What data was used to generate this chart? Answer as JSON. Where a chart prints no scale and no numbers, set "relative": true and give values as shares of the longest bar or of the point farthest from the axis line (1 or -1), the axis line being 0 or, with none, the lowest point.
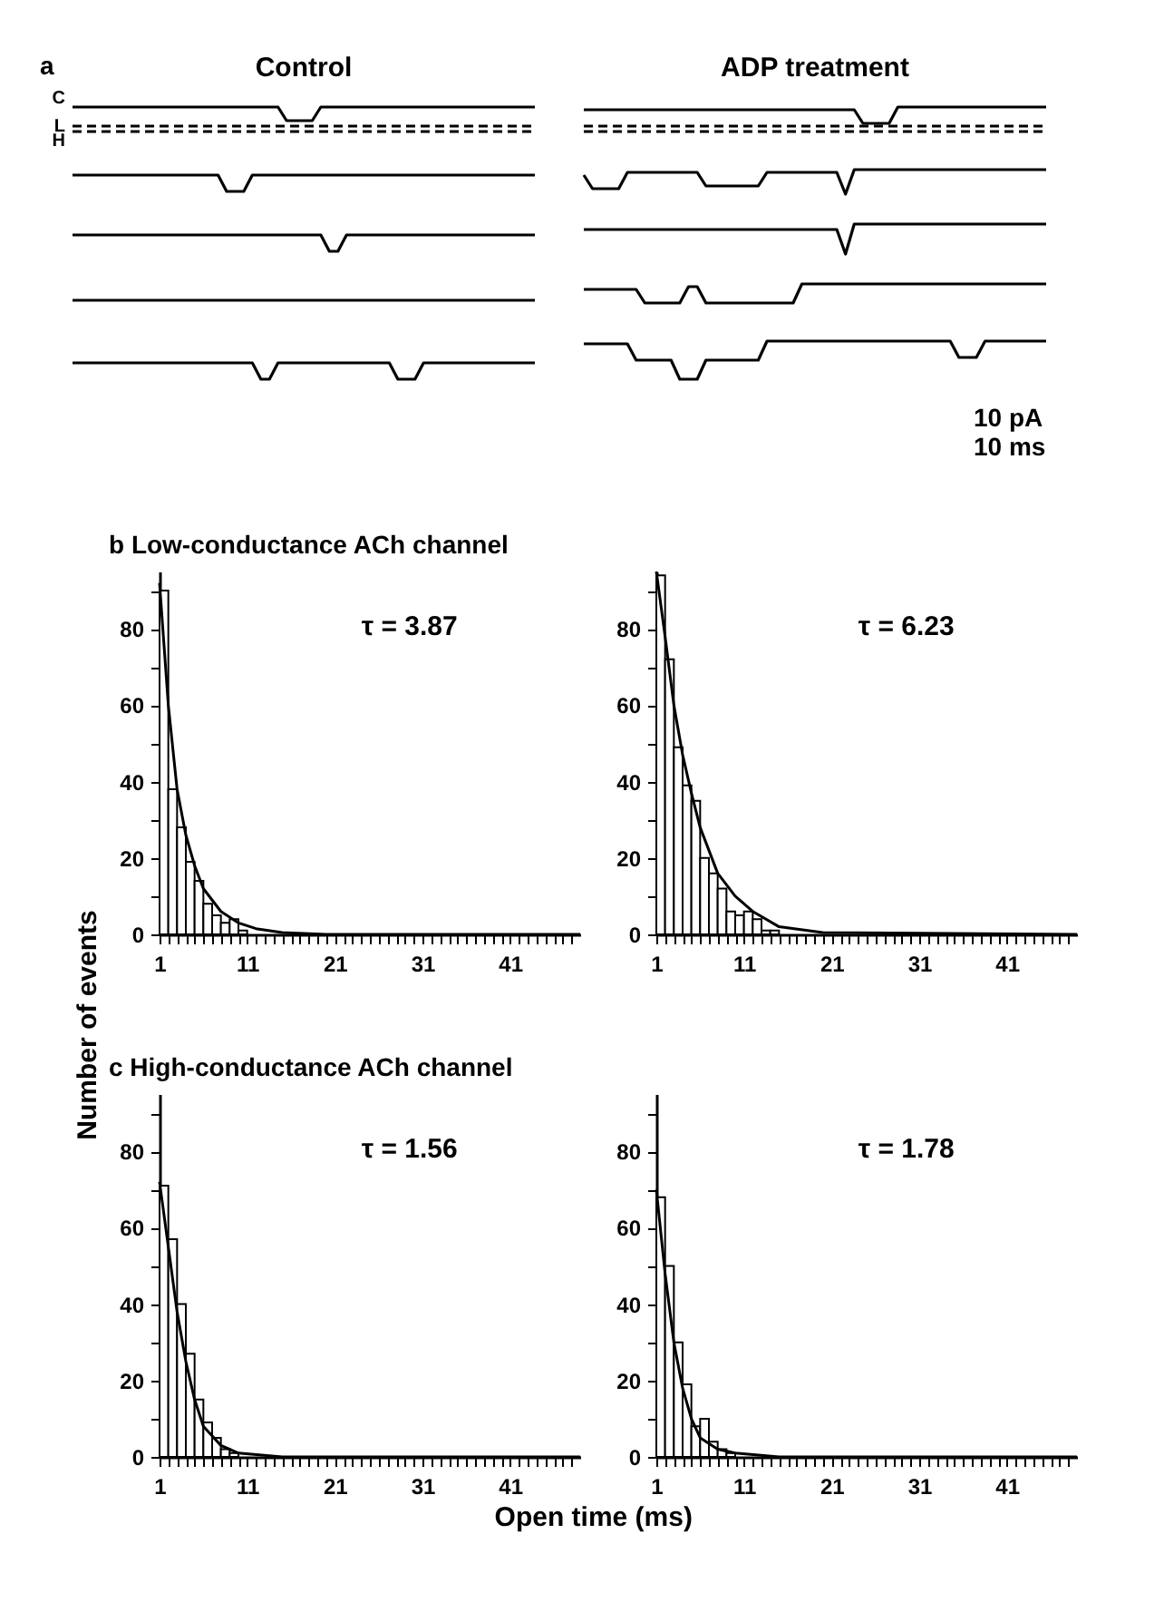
{
  "chart_data": [
    {
      "type": "line",
      "title": "Control",
      "relative": true,
      "annotations": [
        "a"
      ],
      "marker": "none",
      "categories": [
        null,
        null,
        null,
        null,
        null,
        null,
        null,
        null,
        null,
        null,
        null,
        null,
        null,
        null,
        null,
        null,
        null,
        null,
        null,
        null,
        null,
        null,
        null,
        null,
        null,
        null,
        null,
        null,
        null,
        null,
        null,
        null,
        null,
        null,
        null,
        null,
        null,
        null,
        null,
        null,
        null,
        null,
        null,
        null,
        null,
        null,
        null,
        null,
        null,
        null,
        null,
        null,
        null,
        null,
        null
      ],
      "series": [
        {
          "name": "C",
          "color": "#000000",
          "line_style": "solid",
          "values": [
            1,
            1,
            1,
            1,
            1,
            1,
            1,
            1,
            1,
            1,
            1,
            1,
            1,
            1,
            1,
            1,
            1,
            1,
            1,
            1,
            1,
            1,
            1,
            1,
            1,
            0.95,
            0.95,
            0.95,
            0.95,
            1,
            1,
            1,
            1,
            1,
            1,
            1,
            1,
            1,
            1,
            1,
            1,
            1,
            1,
            1,
            1,
            1,
            1,
            1,
            1,
            1,
            1,
            1,
            1,
            1,
            1
          ]
        },
        {
          "name": "L",
          "color": "#000000",
          "line_style": "dashed",
          "values": [
            0.93,
            0.93,
            0.93,
            0.93,
            0.93,
            0.93,
            0.93,
            0.93,
            0.93,
            0.93,
            0.93,
            0.93,
            0.93,
            0.93,
            0.93,
            0.93,
            0.93,
            0.93,
            0.93,
            0.93,
            0.93,
            0.93,
            0.93,
            0.93,
            0.93,
            0.93,
            0.93,
            0.93,
            0.93,
            0.93,
            0.93,
            0.93,
            0.93,
            0.93,
            0.93,
            0.93,
            0.93,
            0.93,
            0.93,
            0.93,
            0.93,
            0.93,
            0.93,
            0.93,
            0.93,
            0.93,
            0.93,
            0.93,
            0.93,
            0.93,
            0.93,
            0.93,
            0.93,
            0.93,
            0.93
          ]
        },
        {
          "name": "H",
          "color": "#000000",
          "line_style": "dashed",
          "values": [
            0.91,
            0.91,
            0.91,
            0.91,
            0.91,
            0.91,
            0.91,
            0.91,
            0.91,
            0.91,
            0.91,
            0.91,
            0.91,
            0.91,
            0.91,
            0.91,
            0.91,
            0.91,
            0.91,
            0.91,
            0.91,
            0.91,
            0.91,
            0.91,
            0.91,
            0.91,
            0.91,
            0.91,
            0.91,
            0.91,
            0.91,
            0.91,
            0.91,
            0.91,
            0.91,
            0.91,
            0.91,
            0.91,
            0.91,
            0.91,
            0.91,
            0.91,
            0.91,
            0.91,
            0.91,
            0.91,
            0.91,
            0.91,
            0.91,
            0.91,
            0.91,
            0.91,
            0.91,
            0.91,
            0.91
          ]
        },
        {
          "color": "#000000",
          "line_style": "solid",
          "values": [
            0.75,
            0.75,
            0.75,
            0.75,
            0.75,
            0.75,
            0.75,
            0.75,
            0.75,
            0.75,
            0.75,
            0.75,
            0.75,
            0.75,
            0.75,
            0.75,
            0.75,
            0.75,
            0.69,
            0.69,
            0.69,
            0.75,
            0.75,
            0.75,
            0.75,
            0.75,
            0.75,
            0.75,
            0.75,
            0.75,
            0.75,
            0.75,
            0.75,
            0.75,
            0.75,
            0.75,
            0.75,
            0.75,
            0.75,
            0.75,
            0.75,
            0.75,
            0.75,
            0.75,
            0.75,
            0.75,
            0.75,
            0.75,
            0.75,
            0.75,
            0.75,
            0.75,
            0.75,
            0.75,
            0.75
          ]
        },
        {
          "color": "#000000",
          "line_style": "solid",
          "values": [
            0.53,
            0.53,
            0.53,
            0.53,
            0.53,
            0.53,
            0.53,
            0.53,
            0.53,
            0.53,
            0.53,
            0.53,
            0.53,
            0.53,
            0.53,
            0.53,
            0.53,
            0.53,
            0.53,
            0.53,
            0.53,
            0.53,
            0.53,
            0.53,
            0.53,
            0.53,
            0.53,
            0.53,
            0.53,
            0.53,
            0.47,
            0.47,
            0.53,
            0.53,
            0.53,
            0.53,
            0.53,
            0.53,
            0.53,
            0.53,
            0.53,
            0.53,
            0.53,
            0.53,
            0.53,
            0.53,
            0.53,
            0.53,
            0.53,
            0.53,
            0.53,
            0.53,
            0.53,
            0.53,
            0.53
          ]
        },
        {
          "color": "#000000",
          "line_style": "solid",
          "values": [
            0.29,
            0.29,
            0.29,
            0.29,
            0.29,
            0.29,
            0.29,
            0.29,
            0.29,
            0.29,
            0.29,
            0.29,
            0.29,
            0.29,
            0.29,
            0.29,
            0.29,
            0.29,
            0.29,
            0.29,
            0.29,
            0.29,
            0.29,
            0.29,
            0.29,
            0.29,
            0.29,
            0.29,
            0.29,
            0.29,
            0.29,
            0.29,
            0.29,
            0.29,
            0.29,
            0.29,
            0.29,
            0.29,
            0.29,
            0.29,
            0.29,
            0.29,
            0.29,
            0.29,
            0.29,
            0.29,
            0.29,
            0.29,
            0.29,
            0.29,
            0.29,
            0.29,
            0.29,
            0.29,
            0.29
          ]
        },
        {
          "color": "#000000",
          "line_style": "solid",
          "values": [
            0.06,
            0.06,
            0.06,
            0.06,
            0.06,
            0.06,
            0.06,
            0.06,
            0.06,
            0.06,
            0.06,
            0.06,
            0.06,
            0.06,
            0.06,
            0.06,
            0.06,
            0.06,
            0.06,
            0.06,
            0.06,
            0.06,
            0,
            0,
            0.06,
            0.06,
            0.06,
            0.06,
            0.06,
            0.06,
            0.06,
            0.06,
            0.06,
            0.06,
            0.06,
            0.06,
            0.06,
            0.06,
            0,
            0,
            0,
            0.06,
            0.06,
            0.06,
            0.06,
            0.06,
            0.06,
            0.06,
            0.06,
            0.06,
            0.06,
            0.06,
            0.06,
            0.06,
            0.06
          ]
        }
      ]
    },
    {
      "type": "line",
      "title": "ADP treatment",
      "relative": true,
      "annotations": [
        "10 pA",
        "10 ms"
      ],
      "marker": "none",
      "categories": [
        null,
        null,
        null,
        null,
        null,
        null,
        null,
        null,
        null,
        null,
        null,
        null,
        null,
        null,
        null,
        null,
        null,
        null,
        null,
        null,
        null,
        null,
        null,
        null,
        null,
        null,
        null,
        null,
        null,
        null,
        null,
        null,
        null,
        null,
        null,
        null,
        null,
        null,
        null,
        null,
        null,
        null,
        null,
        null,
        null,
        null,
        null,
        null,
        null,
        null,
        null,
        null,
        null,
        null
      ],
      "series": [
        {
          "color": "#000000",
          "line_style": "solid",
          "values": [
            0.99,
            0.99,
            0.99,
            0.99,
            0.99,
            0.99,
            0.99,
            0.99,
            0.99,
            0.99,
            0.99,
            0.99,
            0.99,
            0.99,
            0.99,
            0.99,
            0.99,
            0.99,
            0.99,
            0.99,
            0.99,
            0.99,
            0.99,
            0.99,
            0.99,
            0.99,
            0.99,
            0.99,
            0.99,
            0.99,
            0.99,
            0.99,
            0.94,
            0.94,
            0.94,
            0.94,
            1,
            1,
            1,
            1,
            1,
            1,
            1,
            1,
            1,
            1,
            1,
            1,
            1,
            1,
            1,
            1,
            1,
            1
          ]
        },
        {
          "color": "#000000",
          "line_style": "dashed",
          "values": [
            0.93,
            0.93,
            0.93,
            0.93,
            0.93,
            0.93,
            0.93,
            0.93,
            0.93,
            0.93,
            0.93,
            0.93,
            0.93,
            0.93,
            0.93,
            0.93,
            0.93,
            0.93,
            0.93,
            0.93,
            0.93,
            0.93,
            0.93,
            0.93,
            0.93,
            0.93,
            0.93,
            0.93,
            0.93,
            0.93,
            0.93,
            0.93,
            0.93,
            0.93,
            0.93,
            0.93,
            0.93,
            0.93,
            0.93,
            0.93,
            0.93,
            0.93,
            0.93,
            0.93,
            0.93,
            0.93,
            0.93,
            0.93,
            0.93,
            0.93,
            0.93,
            0.93,
            0.93,
            0.93
          ]
        },
        {
          "color": "#000000",
          "line_style": "dashed",
          "values": [
            0.91,
            0.91,
            0.91,
            0.91,
            0.91,
            0.91,
            0.91,
            0.91,
            0.91,
            0.91,
            0.91,
            0.91,
            0.91,
            0.91,
            0.91,
            0.91,
            0.91,
            0.91,
            0.91,
            0.91,
            0.91,
            0.91,
            0.91,
            0.91,
            0.91,
            0.91,
            0.91,
            0.91,
            0.91,
            0.91,
            0.91,
            0.91,
            0.91,
            0.91,
            0.91,
            0.91,
            0.91,
            0.91,
            0.91,
            0.91,
            0.91,
            0.91,
            0.91,
            0.91,
            0.91,
            0.91,
            0.91,
            0.91,
            0.91,
            0.91,
            0.91,
            0.91,
            0.91,
            0.91
          ]
        },
        {
          "color": "#000000",
          "line_style": "solid",
          "values": [
            0.75,
            0.7,
            0.7,
            0.7,
            0.7,
            0.76,
            0.76,
            0.76,
            0.76,
            0.76,
            0.76,
            0.76,
            0.76,
            0.76,
            0.71,
            0.71,
            0.71,
            0.71,
            0.71,
            0.71,
            0.71,
            0.76,
            0.76,
            0.76,
            0.76,
            0.76,
            0.76,
            0.76,
            0.76,
            0.76,
            0.68,
            0.77,
            0.77,
            0.77,
            0.77,
            0.77,
            0.77,
            0.77,
            0.77,
            0.77,
            0.77,
            0.77,
            0.77,
            0.77,
            0.77,
            0.77,
            0.77,
            0.77,
            0.77,
            0.77,
            0.77,
            0.77,
            0.77,
            0.77
          ]
        },
        {
          "color": "#000000",
          "line_style": "solid",
          "values": [
            0.55,
            0.55,
            0.55,
            0.55,
            0.55,
            0.55,
            0.55,
            0.55,
            0.55,
            0.55,
            0.55,
            0.55,
            0.55,
            0.55,
            0.55,
            0.55,
            0.55,
            0.55,
            0.55,
            0.55,
            0.55,
            0.55,
            0.55,
            0.55,
            0.55,
            0.55,
            0.55,
            0.55,
            0.55,
            0.55,
            0.46,
            0.57,
            0.57,
            0.57,
            0.57,
            0.57,
            0.57,
            0.57,
            0.57,
            0.57,
            0.57,
            0.57,
            0.57,
            0.57,
            0.57,
            0.57,
            0.57,
            0.57,
            0.57,
            0.57,
            0.57,
            0.57,
            0.57,
            0.57
          ]
        },
        {
          "color": "#000000",
          "line_style": "solid",
          "values": [
            0.33,
            0.33,
            0.33,
            0.33,
            0.33,
            0.33,
            0.33,
            0.28,
            0.28,
            0.28,
            0.28,
            0.28,
            0.34,
            0.34,
            0.28,
            0.28,
            0.28,
            0.28,
            0.28,
            0.28,
            0.28,
            0.28,
            0.28,
            0.28,
            0.28,
            0.35,
            0.35,
            0.35,
            0.35,
            0.35,
            0.35,
            0.35,
            0.35,
            0.35,
            0.35,
            0.35,
            0.35,
            0.35,
            0.35,
            0.35,
            0.35,
            0.35,
            0.35,
            0.35,
            0.35,
            0.35,
            0.35,
            0.35,
            0.35,
            0.35,
            0.35,
            0.35,
            0.35,
            0.35
          ]
        },
        {
          "color": "#000000",
          "line_style": "solid",
          "values": [
            0.13,
            0.13,
            0.13,
            0.13,
            0.13,
            0.13,
            0.07,
            0.07,
            0.07,
            0.07,
            0.07,
            0,
            0,
            0,
            0.07,
            0.07,
            0.07,
            0.07,
            0.07,
            0.07,
            0.07,
            0.14,
            0.14,
            0.14,
            0.14,
            0.14,
            0.14,
            0.14,
            0.14,
            0.14,
            0.14,
            0.14,
            0.14,
            0.14,
            0.14,
            0.14,
            0.14,
            0.14,
            0.14,
            0.14,
            0.14,
            0.14,
            0.14,
            0.08,
            0.08,
            0.08,
            0.14,
            0.14,
            0.14,
            0.14,
            0.14,
            0.14,
            0.14,
            0.14
          ]
        }
      ]
    },
    {
      "type": "histogram",
      "title": "b  Low-conductance ACh channel",
      "ylabel": "Number of events",
      "annotations": [
        "τ = 3.87"
      ],
      "color": "#000000",
      "bins": [
        1,
        2,
        3,
        4,
        5,
        6,
        7,
        8,
        9,
        10,
        11,
        12,
        13,
        14,
        15,
        16,
        17,
        18,
        19,
        20,
        21,
        22,
        23,
        24,
        25,
        26,
        27,
        28,
        29,
        30,
        31,
        32,
        33,
        34,
        35,
        36,
        37,
        38,
        39,
        40,
        41,
        42,
        43,
        44,
        45,
        46,
        47,
        48,
        49
      ],
      "values": [
        90,
        38,
        28,
        19,
        14,
        8,
        5,
        3,
        4,
        1,
        0,
        0,
        0,
        0,
        0,
        0,
        0,
        0,
        0,
        0,
        0,
        0,
        0,
        0,
        0,
        0,
        0,
        0,
        0,
        0,
        0,
        0,
        0,
        0,
        0,
        0,
        0,
        0,
        0,
        0,
        0,
        0,
        0,
        0,
        0,
        0,
        0,
        0
      ],
      "series": [
        {
          "type": "line",
          "color": "#000000",
          "x": [
            1,
            2,
            3,
            4,
            5,
            6,
            8,
            10,
            12,
            15,
            20,
            49
          ],
          "values": [
            92,
            60,
            38,
            26,
            18,
            12,
            6,
            3,
            1.5,
            0.5,
            0,
            0
          ]
        }
      ],
      "xlim": [
        1,
        49
      ],
      "ylim": [
        0,
        95
      ],
      "xticks": [
        1,
        {
          "value": 2,
          "label": null
        },
        {
          "value": 3,
          "label": null
        },
        {
          "value": 4,
          "label": null
        },
        {
          "value": 5,
          "label": null
        },
        {
          "value": 6,
          "label": null
        },
        {
          "value": 7,
          "label": null
        },
        {
          "value": 8,
          "label": null
        },
        {
          "value": 9,
          "label": null
        },
        {
          "value": 10,
          "label": null
        },
        11,
        {
          "value": 12,
          "label": null
        },
        {
          "value": 13,
          "label": null
        },
        {
          "value": 14,
          "label": null
        },
        {
          "value": 15,
          "label": null
        },
        {
          "value": 16,
          "label": null
        },
        {
          "value": 17,
          "label": null
        },
        {
          "value": 18,
          "label": null
        },
        {
          "value": 19,
          "label": null
        },
        {
          "value": 20,
          "label": null
        },
        21,
        {
          "value": 22,
          "label": null
        },
        {
          "value": 23,
          "label": null
        },
        {
          "value": 24,
          "label": null
        },
        {
          "value": 25,
          "label": null
        },
        {
          "value": 26,
          "label": null
        },
        {
          "value": 27,
          "label": null
        },
        {
          "value": 28,
          "label": null
        },
        {
          "value": 29,
          "label": null
        },
        {
          "value": 30,
          "label": null
        },
        31,
        {
          "value": 32,
          "label": null
        },
        {
          "value": 33,
          "label": null
        },
        {
          "value": 34,
          "label": null
        },
        {
          "value": 35,
          "label": null
        },
        {
          "value": 36,
          "label": null
        },
        {
          "value": 37,
          "label": null
        },
        {
          "value": 38,
          "label": null
        },
        {
          "value": 39,
          "label": null
        },
        {
          "value": 40,
          "label": null
        },
        41,
        {
          "value": 42,
          "label": null
        },
        {
          "value": 43,
          "label": null
        },
        {
          "value": 44,
          "label": null
        },
        {
          "value": 45,
          "label": null
        },
        {
          "value": 46,
          "label": null
        },
        {
          "value": 47,
          "label": null
        },
        {
          "value": 48,
          "label": null
        }
      ],
      "yticks": [
        0,
        {
          "value": 10,
          "label": null
        },
        20,
        {
          "value": 30,
          "label": null
        },
        40,
        {
          "value": 50,
          "label": null
        },
        60,
        {
          "value": 70,
          "label": null
        },
        80,
        {
          "value": 90,
          "label": null
        }
      ]
    },
    {
      "type": "histogram",
      "annotations": [
        "τ = 6.23"
      ],
      "color": "#000000",
      "bins": [
        1,
        2,
        3,
        4,
        5,
        6,
        7,
        8,
        9,
        10,
        11,
        12,
        13,
        14,
        15,
        16,
        17,
        18,
        19,
        20,
        21,
        22,
        23,
        24,
        25,
        26,
        27,
        28,
        29,
        30,
        31,
        32,
        33,
        34,
        35,
        36,
        37,
        38,
        39,
        40,
        41,
        42,
        43,
        44,
        45,
        46,
        47,
        48,
        49
      ],
      "values": [
        94,
        72,
        49,
        39,
        35,
        20,
        16,
        12,
        6,
        5,
        6,
        4,
        1,
        1,
        0,
        0,
        0,
        0,
        0,
        0,
        0,
        0,
        0,
        0,
        0,
        0,
        0,
        0,
        0,
        0,
        0,
        0,
        0,
        0,
        0,
        0,
        0,
        0,
        0,
        0,
        0,
        0,
        0,
        0,
        0,
        0,
        0,
        0
      ],
      "series": [
        {
          "type": "line",
          "color": "#000000",
          "x": [
            1,
            2,
            3,
            4,
            5,
            6,
            8,
            10,
            12,
            15,
            20,
            49
          ],
          "values": [
            95,
            78,
            60,
            47,
            37,
            28,
            16,
            10,
            6,
            2,
            0.5,
            0
          ]
        }
      ],
      "xlim": [
        1,
        49
      ],
      "ylim": [
        0,
        95
      ],
      "xticks": [
        1,
        {
          "value": 2,
          "label": null
        },
        {
          "value": 3,
          "label": null
        },
        {
          "value": 4,
          "label": null
        },
        {
          "value": 5,
          "label": null
        },
        {
          "value": 6,
          "label": null
        },
        {
          "value": 7,
          "label": null
        },
        {
          "value": 8,
          "label": null
        },
        {
          "value": 9,
          "label": null
        },
        {
          "value": 10,
          "label": null
        },
        11,
        {
          "value": 12,
          "label": null
        },
        {
          "value": 13,
          "label": null
        },
        {
          "value": 14,
          "label": null
        },
        {
          "value": 15,
          "label": null
        },
        {
          "value": 16,
          "label": null
        },
        {
          "value": 17,
          "label": null
        },
        {
          "value": 18,
          "label": null
        },
        {
          "value": 19,
          "label": null
        },
        {
          "value": 20,
          "label": null
        },
        21,
        {
          "value": 22,
          "label": null
        },
        {
          "value": 23,
          "label": null
        },
        {
          "value": 24,
          "label": null
        },
        {
          "value": 25,
          "label": null
        },
        {
          "value": 26,
          "label": null
        },
        {
          "value": 27,
          "label": null
        },
        {
          "value": 28,
          "label": null
        },
        {
          "value": 29,
          "label": null
        },
        {
          "value": 30,
          "label": null
        },
        31,
        {
          "value": 32,
          "label": null
        },
        {
          "value": 33,
          "label": null
        },
        {
          "value": 34,
          "label": null
        },
        {
          "value": 35,
          "label": null
        },
        {
          "value": 36,
          "label": null
        },
        {
          "value": 37,
          "label": null
        },
        {
          "value": 38,
          "label": null
        },
        {
          "value": 39,
          "label": null
        },
        {
          "value": 40,
          "label": null
        },
        41,
        {
          "value": 42,
          "label": null
        },
        {
          "value": 43,
          "label": null
        },
        {
          "value": 44,
          "label": null
        },
        {
          "value": 45,
          "label": null
        },
        {
          "value": 46,
          "label": null
        },
        {
          "value": 47,
          "label": null
        },
        {
          "value": 48,
          "label": null
        }
      ],
      "yticks": [
        0,
        {
          "value": 10,
          "label": null
        },
        20,
        {
          "value": 30,
          "label": null
        },
        40,
        {
          "value": 50,
          "label": null
        },
        60,
        {
          "value": 70,
          "label": null
        },
        80,
        {
          "value": 90,
          "label": null
        }
      ]
    },
    {
      "type": "histogram",
      "title": "c  High-conductance ACh channel",
      "xlabel": "Open time (ms)",
      "annotations": [
        "τ = 1.56"
      ],
      "color": "#000000",
      "bins": [
        1,
        2,
        3,
        4,
        5,
        6,
        7,
        8,
        9,
        10,
        11,
        12,
        13,
        14,
        15,
        16,
        17,
        18,
        19,
        20,
        21,
        22,
        23,
        24,
        25,
        26,
        27,
        28,
        29,
        30,
        31,
        32,
        33,
        34,
        35,
        36,
        37,
        38,
        39,
        40,
        41,
        42,
        43,
        44,
        45,
        46,
        47,
        48,
        49
      ],
      "values": [
        71,
        57,
        40,
        27,
        15,
        9,
        5,
        2,
        1,
        0,
        0,
        0,
        0,
        0,
        0,
        0,
        0,
        0,
        0,
        0,
        0,
        0,
        0,
        0,
        0,
        0,
        0,
        0,
        0,
        0,
        0,
        0,
        0,
        0,
        0,
        0,
        0,
        0,
        0,
        0,
        0,
        0,
        0,
        0,
        0,
        0,
        0,
        0
      ],
      "series": [
        {
          "type": "line",
          "color": "#000000",
          "x": [
            1,
            2,
            3,
            4,
            5,
            6,
            8,
            10,
            15,
            49
          ],
          "values": [
            72,
            55,
            38,
            25,
            15,
            8,
            3,
            1,
            0,
            0
          ]
        }
      ],
      "xlim": [
        1,
        49
      ],
      "ylim": [
        0,
        95
      ],
      "xticks": [
        1,
        {
          "value": 2,
          "label": null
        },
        {
          "value": 3,
          "label": null
        },
        {
          "value": 4,
          "label": null
        },
        {
          "value": 5,
          "label": null
        },
        {
          "value": 6,
          "label": null
        },
        {
          "value": 7,
          "label": null
        },
        {
          "value": 8,
          "label": null
        },
        {
          "value": 9,
          "label": null
        },
        {
          "value": 10,
          "label": null
        },
        11,
        {
          "value": 12,
          "label": null
        },
        {
          "value": 13,
          "label": null
        },
        {
          "value": 14,
          "label": null
        },
        {
          "value": 15,
          "label": null
        },
        {
          "value": 16,
          "label": null
        },
        {
          "value": 17,
          "label": null
        },
        {
          "value": 18,
          "label": null
        },
        {
          "value": 19,
          "label": null
        },
        {
          "value": 20,
          "label": null
        },
        21,
        {
          "value": 22,
          "label": null
        },
        {
          "value": 23,
          "label": null
        },
        {
          "value": 24,
          "label": null
        },
        {
          "value": 25,
          "label": null
        },
        {
          "value": 26,
          "label": null
        },
        {
          "value": 27,
          "label": null
        },
        {
          "value": 28,
          "label": null
        },
        {
          "value": 29,
          "label": null
        },
        {
          "value": 30,
          "label": null
        },
        31,
        {
          "value": 32,
          "label": null
        },
        {
          "value": 33,
          "label": null
        },
        {
          "value": 34,
          "label": null
        },
        {
          "value": 35,
          "label": null
        },
        {
          "value": 36,
          "label": null
        },
        {
          "value": 37,
          "label": null
        },
        {
          "value": 38,
          "label": null
        },
        {
          "value": 39,
          "label": null
        },
        {
          "value": 40,
          "label": null
        },
        41,
        {
          "value": 42,
          "label": null
        },
        {
          "value": 43,
          "label": null
        },
        {
          "value": 44,
          "label": null
        },
        {
          "value": 45,
          "label": null
        },
        {
          "value": 46,
          "label": null
        },
        {
          "value": 47,
          "label": null
        },
        {
          "value": 48,
          "label": null
        }
      ],
      "yticks": [
        0,
        {
          "value": 10,
          "label": null
        },
        20,
        {
          "value": 30,
          "label": null
        },
        40,
        {
          "value": 50,
          "label": null
        },
        60,
        {
          "value": 70,
          "label": null
        },
        80,
        {
          "value": 90,
          "label": null
        }
      ]
    },
    {
      "type": "histogram",
      "annotations": [
        "τ = 1.78"
      ],
      "color": "#000000",
      "bins": [
        1,
        2,
        3,
        4,
        5,
        6,
        7,
        8,
        9,
        10,
        11,
        12,
        13,
        14,
        15,
        16,
        17,
        18,
        19,
        20,
        21,
        22,
        23,
        24,
        25,
        26,
        27,
        28,
        29,
        30,
        31,
        32,
        33,
        34,
        35,
        36,
        37,
        38,
        39,
        40,
        41,
        42,
        43,
        44,
        45,
        46,
        47,
        48,
        49
      ],
      "values": [
        68,
        50,
        30,
        19,
        8,
        10,
        4,
        2,
        1,
        0,
        0,
        0,
        0,
        0,
        0,
        0,
        0,
        0,
        0,
        0,
        0,
        0,
        0,
        0,
        0,
        0,
        0,
        0,
        0,
        0,
        0,
        0,
        0,
        0,
        0,
        0,
        0,
        0,
        0,
        0,
        0,
        0,
        0,
        0,
        0,
        0,
        0,
        0
      ],
      "series": [
        {
          "type": "line",
          "color": "#000000",
          "x": [
            1,
            2,
            3,
            4,
            5,
            6,
            8,
            10,
            15,
            49
          ],
          "values": [
            70,
            48,
            30,
            18,
            10,
            5,
            2,
            1,
            0,
            0
          ]
        }
      ],
      "xlim": [
        1,
        49
      ],
      "ylim": [
        0,
        95
      ],
      "xticks": [
        1,
        {
          "value": 2,
          "label": null
        },
        {
          "value": 3,
          "label": null
        },
        {
          "value": 4,
          "label": null
        },
        {
          "value": 5,
          "label": null
        },
        {
          "value": 6,
          "label": null
        },
        {
          "value": 7,
          "label": null
        },
        {
          "value": 8,
          "label": null
        },
        {
          "value": 9,
          "label": null
        },
        {
          "value": 10,
          "label": null
        },
        11,
        {
          "value": 12,
          "label": null
        },
        {
          "value": 13,
          "label": null
        },
        {
          "value": 14,
          "label": null
        },
        {
          "value": 15,
          "label": null
        },
        {
          "value": 16,
          "label": null
        },
        {
          "value": 17,
          "label": null
        },
        {
          "value": 18,
          "label": null
        },
        {
          "value": 19,
          "label": null
        },
        {
          "value": 20,
          "label": null
        },
        21,
        {
          "value": 22,
          "label": null
        },
        {
          "value": 23,
          "label": null
        },
        {
          "value": 24,
          "label": null
        },
        {
          "value": 25,
          "label": null
        },
        {
          "value": 26,
          "label": null
        },
        {
          "value": 27,
          "label": null
        },
        {
          "value": 28,
          "label": null
        },
        {
          "value": 29,
          "label": null
        },
        {
          "value": 30,
          "label": null
        },
        31,
        {
          "value": 32,
          "label": null
        },
        {
          "value": 33,
          "label": null
        },
        {
          "value": 34,
          "label": null
        },
        {
          "value": 35,
          "label": null
        },
        {
          "value": 36,
          "label": null
        },
        {
          "value": 37,
          "label": null
        },
        {
          "value": 38,
          "label": null
        },
        {
          "value": 39,
          "label": null
        },
        {
          "value": 40,
          "label": null
        },
        41,
        {
          "value": 42,
          "label": null
        },
        {
          "value": 43,
          "label": null
        },
        {
          "value": 44,
          "label": null
        },
        {
          "value": 45,
          "label": null
        },
        {
          "value": 46,
          "label": null
        },
        {
          "value": 47,
          "label": null
        },
        {
          "value": 48,
          "label": null
        }
      ],
      "yticks": [
        0,
        {
          "value": 10,
          "label": null
        },
        20,
        {
          "value": 30,
          "label": null
        },
        40,
        {
          "value": 50,
          "label": null
        },
        60,
        {
          "value": 70,
          "label": null
        },
        80,
        {
          "value": 90,
          "label": null
        }
      ]
    }
  ]
}
